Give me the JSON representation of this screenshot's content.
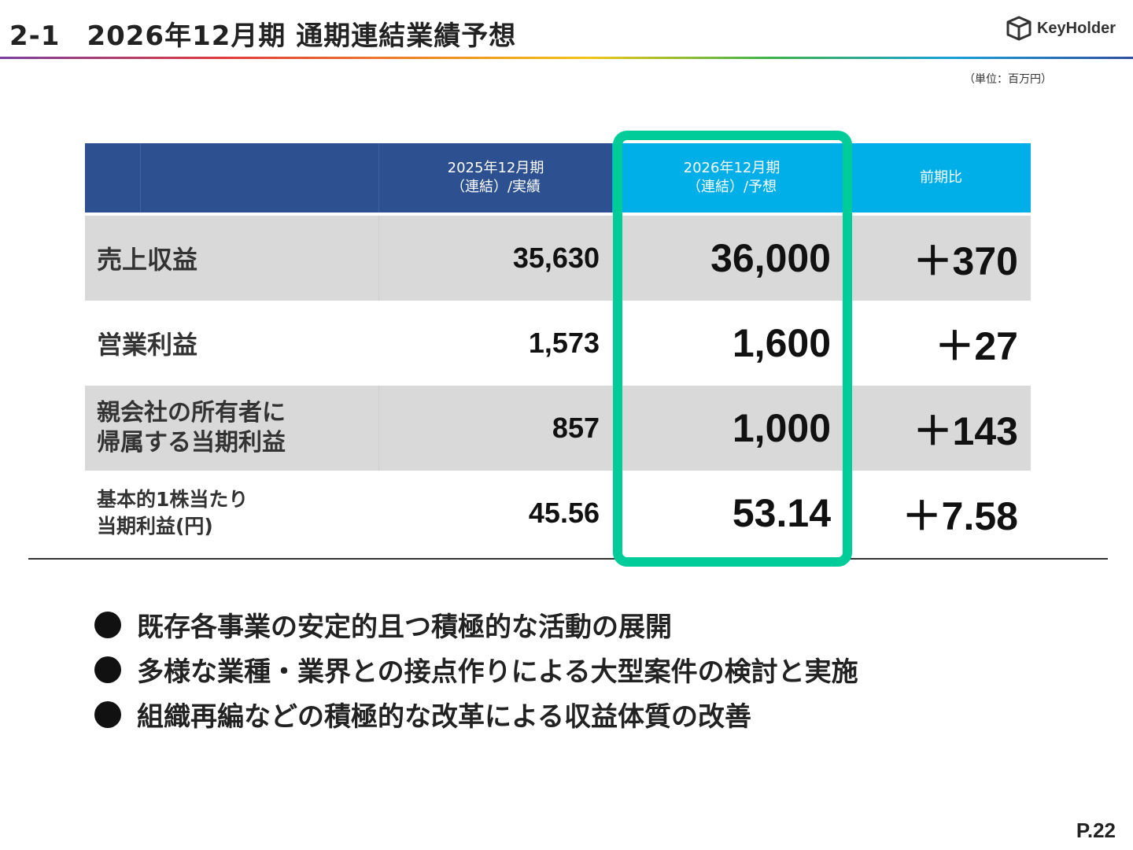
{
  "header": {
    "section_number": "2-1",
    "title": "2026年12月期 通期連結業績予想",
    "logo_text": "KeyHolder",
    "logo_icon": "cube-logo-icon"
  },
  "unit_note": "（単位：百万円）",
  "table": {
    "col_2025_line1": "2025年12月期",
    "col_2025_line2": "（連結）/実績",
    "col_2026_line1": "2026年12月期",
    "col_2026_line2": "（連結）/予想",
    "col_diff": "前期比",
    "rows": [
      {
        "label_line1": "売上収益",
        "label_line2": "",
        "v2025": "35,630",
        "v2026": "36,000",
        "diff": "＋370"
      },
      {
        "label_line1": "営業利益",
        "label_line2": "",
        "v2025": "1,573",
        "v2026": "1,600",
        "diff": "＋27"
      },
      {
        "label_line1": "親会社の所有者に",
        "label_line2": "帰属する当期利益",
        "v2025": "857",
        "v2026": "1,000",
        "diff": "＋143"
      },
      {
        "label_line1": "基本的1株当たり",
        "label_line2": "当期利益(円)",
        "v2025": "45.56",
        "v2026": "53.14",
        "diff": "＋7.58"
      }
    ]
  },
  "highlight_color": "#00cc99",
  "bullets": [
    "既存各事業の安定的且つ積極的な活動の展開",
    "多様な業種・業界との接点作りによる大型案件の検討と実施",
    "組織再編などの積極的な改革による収益体質の改善"
  ],
  "page_number": "P.22"
}
